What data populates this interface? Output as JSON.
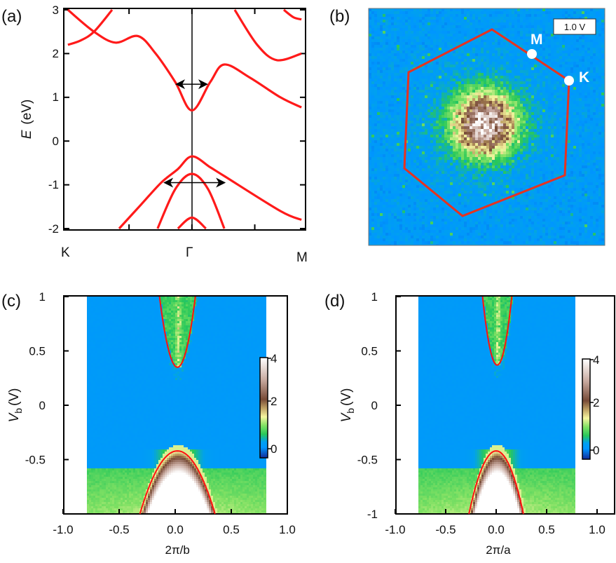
{
  "chart_data": [
    {
      "panel": "(a)",
      "type": "line",
      "ylabel_var": "E",
      "ylabel_unit": "(eV)",
      "ylim": [
        -2,
        3
      ],
      "yticks": [
        "3",
        "2",
        "1",
        "0",
        "-1",
        "-2"
      ],
      "xtick_labels": [
        "K",
        "Γ",
        "M"
      ],
      "color": "#ff1a1a",
      "series": [
        {
          "name": "conduction-band-1",
          "points": [
            [
              0.017,
              3.0
            ],
            [
              0.125,
              2.5
            ],
            [
              0.214,
              2.25
            ],
            [
              0.307,
              2.4
            ],
            [
              0.38,
              2.0
            ],
            [
              0.461,
              1.35
            ],
            [
              0.53,
              0.7
            ],
            [
              0.606,
              1.35
            ],
            [
              0.664,
              1.75
            ],
            [
              0.77,
              1.45
            ],
            [
              0.896,
              1.0
            ],
            [
              0.983,
              0.77
            ]
          ]
        },
        {
          "name": "conduction-band-2",
          "points": [
            [
              0.017,
              2.2
            ],
            [
              0.07,
              2.3
            ],
            [
              0.125,
              2.5
            ],
            [
              0.2,
              3.0
            ]
          ]
        },
        {
          "name": "conduction-band-3",
          "points": [
            [
              0.707,
              3.0
            ],
            [
              0.8,
              2.2
            ],
            [
              0.881,
              1.85
            ],
            [
              0.983,
              2.0
            ]
          ]
        },
        {
          "name": "conduction-band-4",
          "points": [
            [
              0.91,
              3.0
            ],
            [
              0.95,
              2.83
            ],
            [
              0.983,
              2.78
            ]
          ]
        },
        {
          "name": "valence-band-1",
          "points": [
            [
              0.229,
              -2.0
            ],
            [
              0.32,
              -1.45
            ],
            [
              0.403,
              -0.95
            ],
            [
              0.47,
              -0.65
            ],
            [
              0.53,
              -0.35
            ],
            [
              0.606,
              -0.6
            ],
            [
              0.664,
              -0.8
            ],
            [
              0.896,
              -1.6
            ],
            [
              0.983,
              -1.8
            ]
          ]
        },
        {
          "name": "valence-band-2",
          "points": [
            [
              0.388,
              -2.0
            ],
            [
              0.461,
              -1.1
            ],
            [
              0.53,
              -0.75
            ],
            [
              0.597,
              -1.1
            ],
            [
              0.664,
              -2.0
            ]
          ]
        },
        {
          "name": "valence-band-3",
          "points": [
            [
              0.472,
              -2.0
            ],
            [
              0.53,
              -1.75
            ],
            [
              0.588,
              -2.0
            ]
          ]
        }
      ],
      "arrows": [
        {
          "E": 1.3,
          "k": [
            0.461,
            0.597
          ]
        },
        {
          "E": -0.95,
          "k": [
            0.412,
            0.67
          ]
        }
      ]
    },
    {
      "panel": "(b)",
      "type": "heatmap",
      "bias_label": "1.0 V",
      "point_labels": [
        "M",
        "K"
      ],
      "outline_color": "#e8321e"
    },
    {
      "panel": "(c)",
      "type": "heatmap",
      "xlabel": "2π/b",
      "ylabel_var": "V",
      "ylabel_sub": "b",
      "ylabel_unit": "(V)",
      "xlim": [
        -1.0,
        1.0
      ],
      "ylim": [
        -1.0,
        1.0
      ],
      "xticks": [
        "-1.0",
        "-0.5",
        "0.0",
        "0.5",
        "1.0"
      ],
      "yticks": [
        "1",
        "0.5",
        "0",
        "-0.5"
      ],
      "colorbar": {
        "ticks": [
          "4",
          "2",
          "0"
        ],
        "range": [
          -0.5,
          4
        ]
      },
      "data_x_range": [
        -0.78,
        0.82
      ],
      "conduction_fit": {
        "x0": 0.02,
        "vmin": 0.35,
        "x_at_v1": [
          -0.15,
          0.17
        ]
      },
      "valence_fit": {
        "x0": 0.02,
        "vmax": -0.42,
        "x_at_vm1": [
          -0.31,
          0.36
        ]
      }
    },
    {
      "panel": "(d)",
      "type": "heatmap",
      "xlabel": "2π/a",
      "ylabel_var": "V",
      "ylabel_sub": "b",
      "ylabel_unit": "(V)",
      "xlim": [
        -1.0,
        1.17
      ],
      "ylim": [
        -1.0,
        1.0
      ],
      "xticks": [
        "-1.0",
        "-0.5",
        "0.0",
        "0.5",
        "1.0"
      ],
      "yticks": [
        "1",
        "0.5",
        "0",
        "-0.5",
        "-1"
      ],
      "colorbar": {
        "ticks": [
          "4",
          "2",
          "0"
        ],
        "range": [
          -0.5,
          4
        ]
      },
      "data_x_range": [
        -0.77,
        0.78
      ],
      "conduction_fit": {
        "x0": 0.01,
        "vmin": 0.37,
        "x_at_v1": [
          -0.13,
          0.16
        ]
      },
      "valence_fit": {
        "x0": 0.0,
        "vmax": -0.42,
        "x_at_vm1": [
          -0.27,
          0.27
        ]
      }
    }
  ]
}
